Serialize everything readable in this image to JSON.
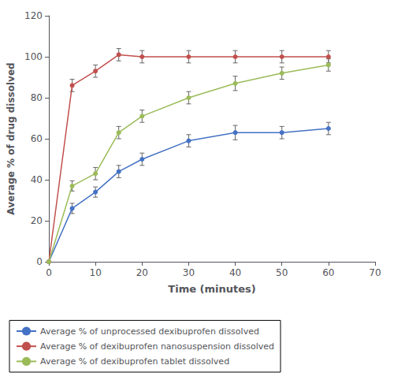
{
  "chart_data": {
    "type": "line",
    "xlabel": "Time (minutes)",
    "ylabel": "Average % of drug dissolved",
    "x": [
      0,
      5,
      10,
      15,
      20,
      30,
      40,
      50,
      60
    ],
    "series": [
      {
        "name": "Average % of unprocessed dexibuprofen dissolved",
        "color": "#4472C4",
        "values": [
          0,
          26,
          34,
          44,
          50,
          59,
          63,
          63,
          65
        ],
        "errors": [
          0,
          2.5,
          2.5,
          3,
          3,
          3,
          3.5,
          3,
          3
        ]
      },
      {
        "name": "Average % of dexibuprofen nanosuspension dissolved",
        "color": "#C0504D",
        "values": [
          0,
          86,
          93,
          101,
          100,
          100,
          100,
          100,
          100
        ],
        "errors": [
          0,
          3,
          3,
          3,
          3,
          3,
          3,
          3,
          3
        ]
      },
      {
        "name": "Average % of dexibuprofen tablet dissolved",
        "color": "#9BBB59",
        "values": [
          0,
          37,
          43,
          63,
          71,
          80,
          87,
          92,
          96
        ],
        "errors": [
          0,
          2.5,
          3,
          3,
          3,
          3,
          3.5,
          3,
          3
        ]
      }
    ],
    "xlim": [
      0,
      70
    ],
    "ylim": [
      0,
      120
    ],
    "xticks": [
      0,
      10,
      20,
      30,
      40,
      50,
      60,
      70
    ],
    "yticks": [
      0,
      20,
      40,
      60,
      80,
      100,
      120
    ],
    "marker": "circle",
    "grid": false,
    "legend": "bottom"
  }
}
